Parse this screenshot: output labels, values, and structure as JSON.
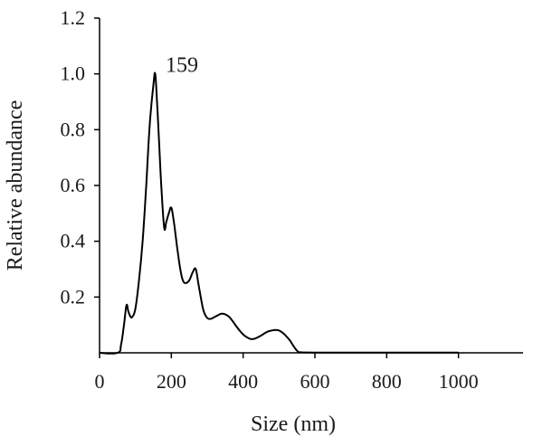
{
  "chart_data": {
    "type": "line",
    "title": "",
    "xlabel": "Size (nm)",
    "ylabel": "Relative abundance",
    "xlim": [
      0,
      1180
    ],
    "ylim": [
      0,
      1.2
    ],
    "x_ticks": [
      0,
      200,
      400,
      600,
      800,
      1000
    ],
    "x_tick_labels": [
      "0",
      "200",
      "400",
      "600",
      "800",
      "1000"
    ],
    "y_ticks": [
      0.2,
      0.4,
      0.6,
      0.8,
      1.0,
      1.2
    ],
    "y_tick_labels": [
      "0.2",
      "0.4",
      "0.6",
      "0.8",
      "1.0",
      "1.2"
    ],
    "grid": false,
    "legend": "none",
    "annotations": [
      {
        "text": "159",
        "x": 159,
        "y": 1.0
      }
    ],
    "series": [
      {
        "color": "#000000",
        "x": [
          0,
          50,
          60,
          68,
          75,
          80,
          86,
          92,
          100,
          110,
          120,
          130,
          140,
          150,
          155,
          160,
          165,
          172,
          180,
          186,
          193,
          200,
          207,
          212,
          218,
          225,
          232,
          240,
          250,
          260,
          268,
          275,
          282,
          290,
          300,
          310,
          320,
          330,
          340,
          350,
          360,
          370,
          380,
          390,
          400,
          410,
          420,
          430,
          440,
          450,
          460,
          470,
          480,
          490,
          500,
          510,
          520,
          530,
          540,
          550,
          560,
          600,
          700,
          800,
          900,
          1000
        ],
        "y": [
          0.0,
          0.0,
          0.03,
          0.1,
          0.17,
          0.15,
          0.13,
          0.13,
          0.16,
          0.26,
          0.4,
          0.6,
          0.82,
          0.96,
          1.0,
          0.9,
          0.78,
          0.6,
          0.45,
          0.47,
          0.5,
          0.52,
          0.47,
          0.42,
          0.36,
          0.3,
          0.26,
          0.25,
          0.26,
          0.29,
          0.3,
          0.25,
          0.2,
          0.15,
          0.125,
          0.122,
          0.128,
          0.135,
          0.14,
          0.138,
          0.13,
          0.115,
          0.097,
          0.08,
          0.066,
          0.056,
          0.05,
          0.05,
          0.055,
          0.062,
          0.07,
          0.077,
          0.08,
          0.082,
          0.08,
          0.072,
          0.06,
          0.045,
          0.025,
          0.008,
          0.002,
          0.001,
          0.001,
          0.001,
          0.001,
          0.001
        ]
      }
    ]
  }
}
